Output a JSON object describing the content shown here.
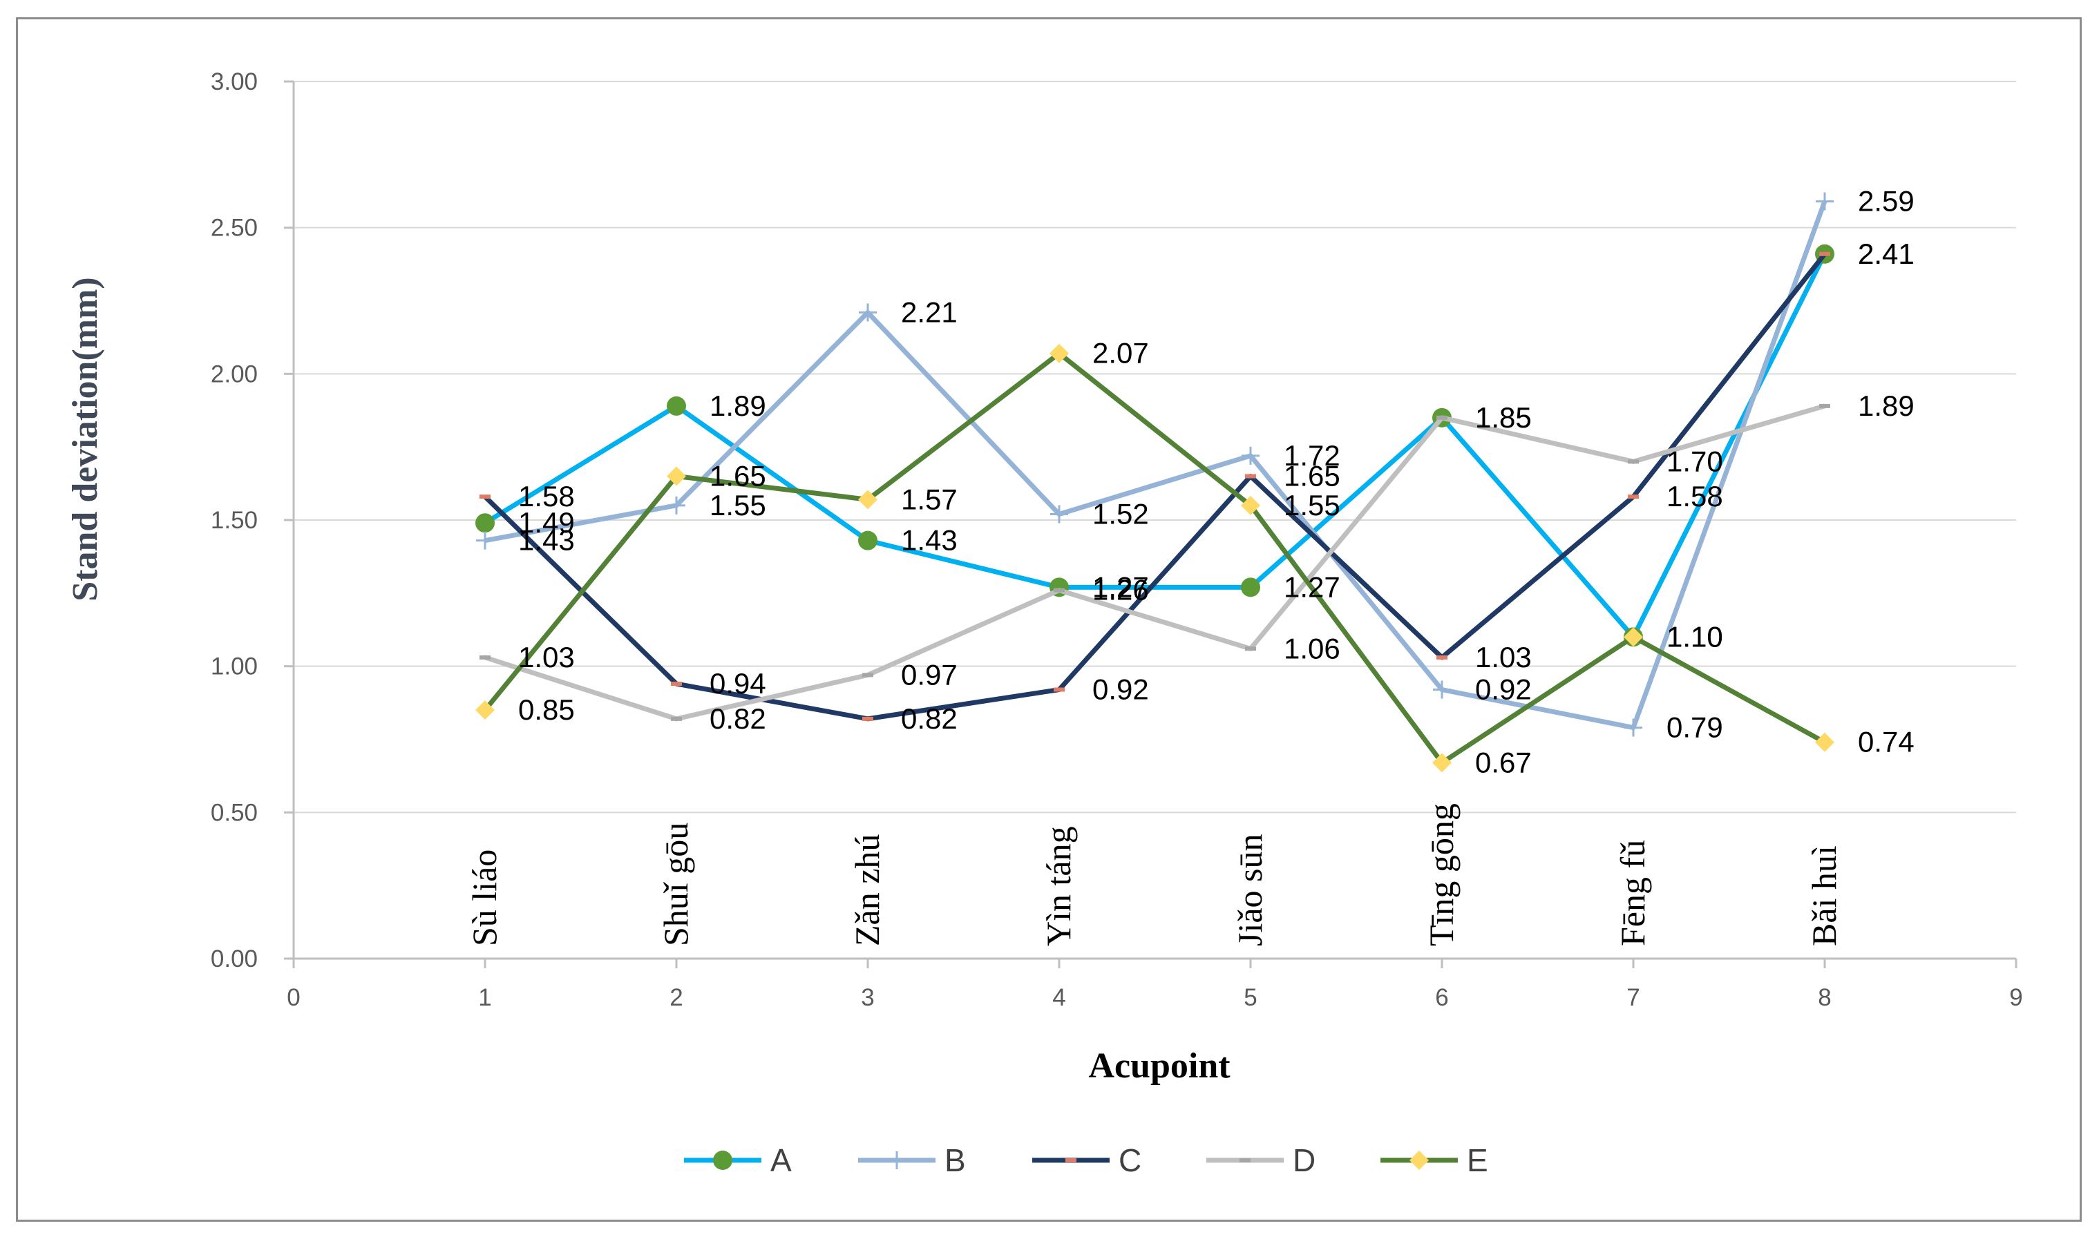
{
  "chart_data": {
    "type": "line",
    "title": "",
    "xlabel": "Acupoint",
    "ylabel": "Stand deviation(mm)",
    "xlim": [
      0,
      9
    ],
    "ylim": [
      0,
      3
    ],
    "x_ticks": [
      "0",
      "1",
      "2",
      "3",
      "4",
      "5",
      "6",
      "7",
      "8",
      "9"
    ],
    "y_ticks": [
      "0.00",
      "0.50",
      "1.00",
      "1.50",
      "2.00",
      "2.50",
      "3.00"
    ],
    "grid": "horizontal",
    "legend_position": "bottom",
    "x": [
      1,
      2,
      3,
      4,
      5,
      6,
      7,
      8
    ],
    "categories": [
      "Sù liáo",
      "Shuǐ gōu",
      "Zǎn zhú",
      "Yìn táng",
      "Jiǎo sūn",
      "Tīng gōng",
      "Fēng fǔ",
      "Bǎi huì"
    ],
    "series": [
      {
        "name": "A",
        "color": "#00b0f0",
        "marker": "circle",
        "marker_color": "#5b9a35",
        "values": [
          1.49,
          1.89,
          1.43,
          1.27,
          1.27,
          1.85,
          1.1,
          2.41
        ],
        "labels": [
          "1.49",
          "1.89",
          "1.43",
          "1.27",
          "1.27",
          "1.85",
          "1.10",
          "2.41"
        ]
      },
      {
        "name": "B",
        "color": "#95b3d7",
        "marker": "plus",
        "marker_color": "#95b3d7",
        "values": [
          1.43,
          1.55,
          2.21,
          1.52,
          1.72,
          0.92,
          0.79,
          2.59
        ],
        "labels": [
          "1.43",
          "1.55",
          "2.21",
          "1.52",
          "1.72",
          "0.92",
          "0.79",
          "2.59"
        ]
      },
      {
        "name": "C",
        "color": "#1f3864",
        "marker": "dash",
        "marker_color": "#e07b65",
        "values": [
          1.58,
          0.94,
          0.82,
          0.92,
          1.65,
          1.03,
          1.58,
          2.41
        ],
        "labels": [
          "1.58",
          "0.94",
          "0.82",
          "0.92",
          "1.65",
          "1.03",
          "1.58",
          "2.41"
        ]
      },
      {
        "name": "D",
        "color": "#bfbfbf",
        "marker": "dash",
        "marker_color": "#a6a6a6",
        "values": [
          1.03,
          0.82,
          0.97,
          1.26,
          1.06,
          1.85,
          1.7,
          1.89
        ],
        "labels": [
          "1.03",
          "0.82",
          "0.97",
          "1.26",
          "1.06",
          "1.85",
          "1.70",
          "1.89"
        ]
      },
      {
        "name": "E",
        "color": "#538135",
        "marker": "diamond",
        "marker_color": "#ffd966",
        "values": [
          0.85,
          1.65,
          1.57,
          2.07,
          1.55,
          0.67,
          1.1,
          0.74
        ],
        "labels": [
          "0.85",
          "1.65",
          "1.57",
          "2.07",
          "1.55",
          "0.67",
          "1.10",
          "0.74"
        ]
      }
    ]
  }
}
